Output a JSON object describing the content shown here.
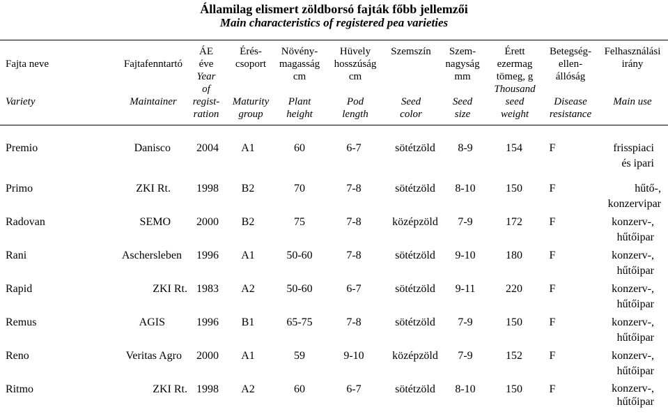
{
  "title": {
    "hu": "Államilag elismert zöldborsó fajták főbb jellemzői",
    "en": "Main characteristics of registered pea varieties"
  },
  "headers": [
    {
      "hu": "Fajta neve",
      "en": "Variety"
    },
    {
      "hu": "Fajtafenntartó",
      "en": "Maintainer"
    },
    {
      "hu": "ÁE\néve",
      "en": "Year\nof\nregist-\nration"
    },
    {
      "hu": "Érés-\ncsoport",
      "en": "Maturity\ngroup"
    },
    {
      "hu": "Növény-\nmagasság\ncm",
      "en": "Plant\nheight"
    },
    {
      "hu": "Hüvely\nhosszúság\ncm",
      "en": "Pod\nlength"
    },
    {
      "hu": "Szemszín",
      "en": "Seed\ncolor"
    },
    {
      "hu": "Szem-\nnagyság\nmm",
      "en": "Seed\nsize"
    },
    {
      "hu": "Érett\nezermag\ntömeg, g",
      "en": "Thousand\nseed\nweight"
    },
    {
      "hu": "Betegség-\nellen-\nállóság",
      "en": "Disease\nresistance"
    },
    {
      "hu": "Felhasználási\nirány",
      "en": "Main use"
    }
  ],
  "rows": [
    {
      "variety": "Premio",
      "maintainer": "Danisco",
      "year": "2004",
      "group": "A1",
      "height": "60",
      "pod": "6-7",
      "color": "sötétzöld",
      "size": "8-9",
      "tsw": "154",
      "disease": "F",
      "use": "frisspiaci\nés ipari"
    },
    {
      "variety": "Primo",
      "maintainer": "ZKI Rt.",
      "year": "1998",
      "group": "B2",
      "height": "70",
      "pod": "7-8",
      "color": "sötétzöld",
      "size": "8-10",
      "tsw": "150",
      "disease": "F",
      "use": "hűtő-,\nkonzervipar"
    },
    {
      "variety": "Radovan",
      "maintainer": "SEMO",
      "year": "2000",
      "group": "B2",
      "height": "75",
      "pod": "7-8",
      "color": "középzöld",
      "size": "7-9",
      "tsw": "172",
      "disease": "F",
      "use": "konzerv-,\nhűtőipar"
    },
    {
      "variety": "Rani",
      "maintainer": "Aschersleben",
      "year": "1996",
      "group": "A1",
      "height": "50-60",
      "pod": "7-8",
      "color": "sötétzöld",
      "size": "9-10",
      "tsw": "180",
      "disease": "F",
      "use": "konzerv-,\nhűtőipar"
    },
    {
      "variety": "Rapid",
      "maintainer": "ZKI Rt.",
      "year": "1983",
      "group": "A2",
      "height": "50-60",
      "pod": "6-7",
      "color": "sötétzöld",
      "size": "9-11",
      "tsw": "220",
      "disease": "F",
      "use": "konzerv-,\nhűtőipar"
    },
    {
      "variety": "Remus",
      "maintainer": "AGIS",
      "year": "1996",
      "group": "B1",
      "height": "65-75",
      "pod": "7-8",
      "color": "sötétzöld",
      "size": "7-9",
      "tsw": "150",
      "disease": "F",
      "use": "konzerv-,\nhűtőipar"
    },
    {
      "variety": "Reno",
      "maintainer": "Veritas Agro",
      "year": "2000",
      "group": "A1",
      "height": "59",
      "pod": "9-10",
      "color": "középzöld",
      "size": "7-9",
      "tsw": "152",
      "disease": "F",
      "use": "konzerv-,\nhűtőipar"
    },
    {
      "variety": "Ritmo",
      "maintainer": "ZKI Rt.",
      "year": "1998",
      "group": "A2",
      "height": "60",
      "pod": "6-7",
      "color": "sötétzöld",
      "size": "8-10",
      "tsw": "150",
      "disease": "F",
      "use": "konzerv-,\nhűtőipar"
    }
  ]
}
